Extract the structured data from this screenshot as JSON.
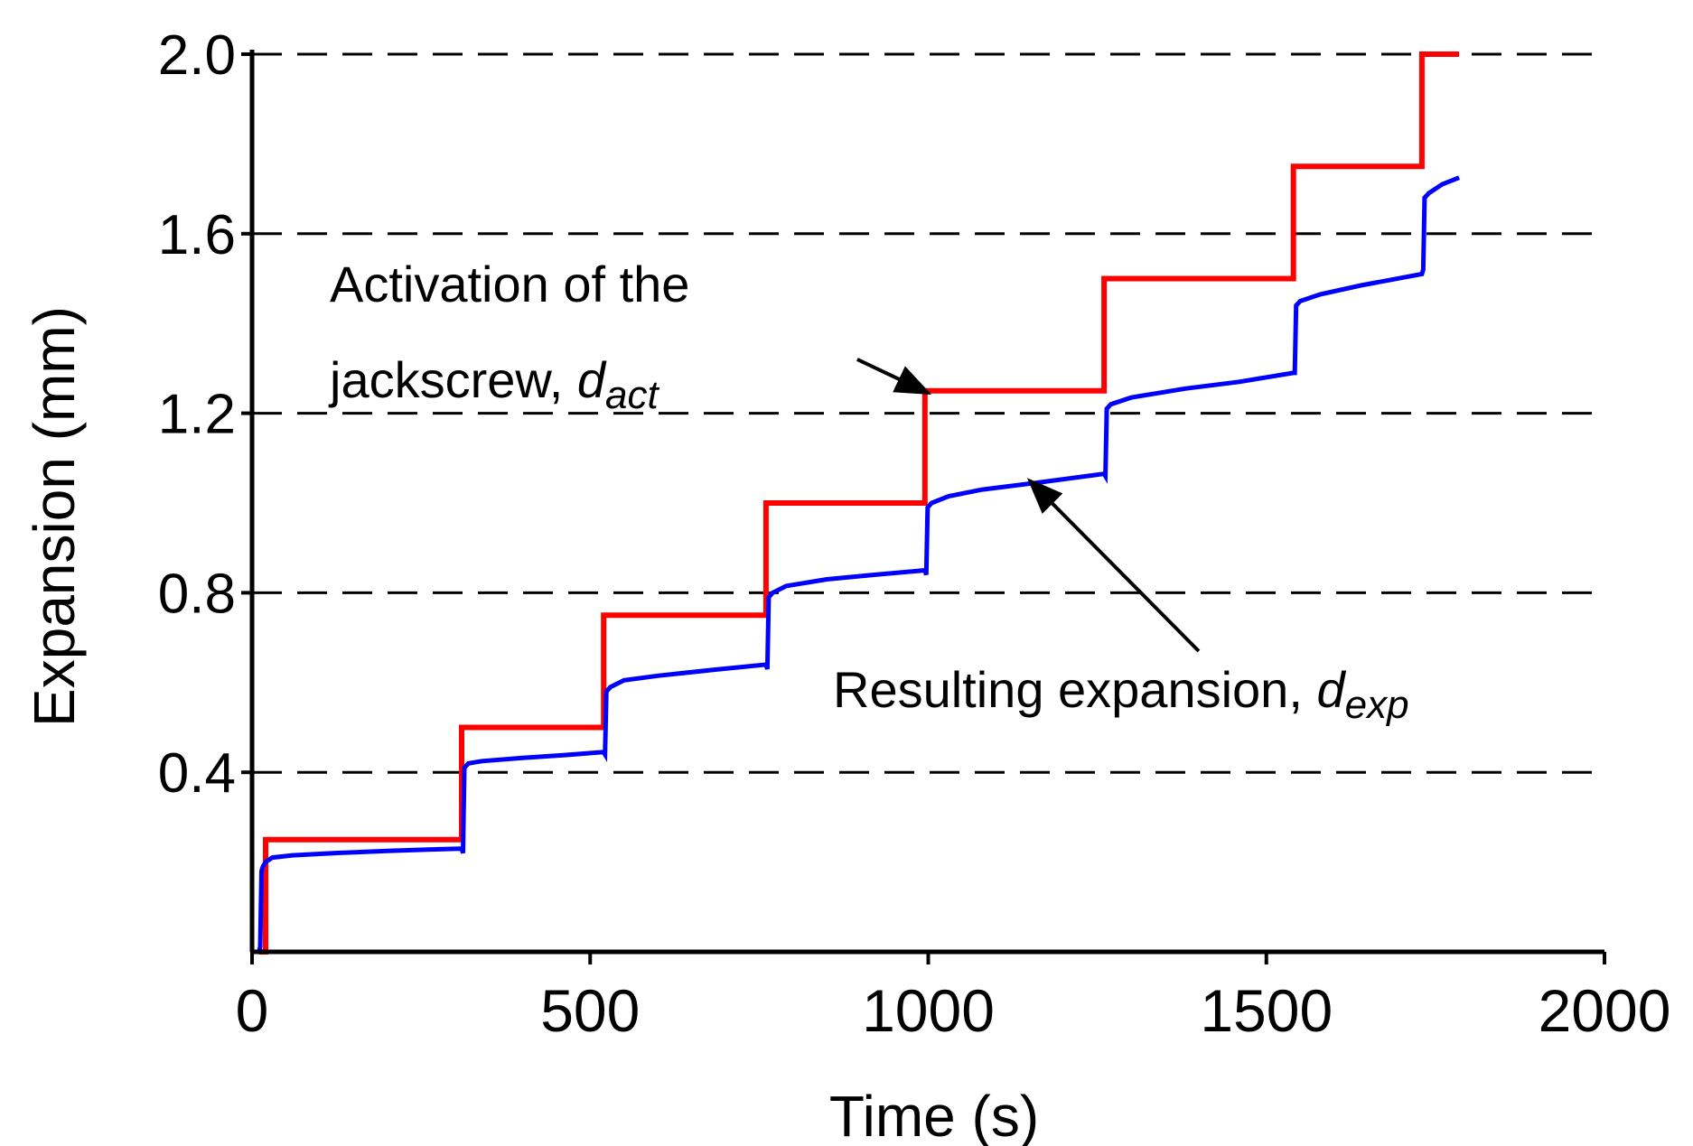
{
  "chart_data": {
    "type": "line",
    "title": "",
    "xlabel": "Time (s)",
    "ylabel": "Expansion (mm)",
    "xlim": [
      0,
      2000
    ],
    "ylim": [
      0,
      2.0
    ],
    "x_ticks": [
      0,
      500,
      1000,
      1500,
      2000
    ],
    "x_tick_labels": [
      "0",
      "500",
      "1000",
      "1500",
      "2000"
    ],
    "y_ticks": [
      0.4,
      0.8,
      1.2,
      1.6,
      2.0
    ],
    "y_tick_labels": [
      "0.4",
      "0.8",
      "1.2",
      "1.6",
      "2.0"
    ],
    "grid": "dashed horizontal lines at y ticks",
    "series": [
      {
        "key": "d_act",
        "color": "#ff0000",
        "points": [
          [
            10,
            0
          ],
          [
            20,
            0
          ],
          [
            20,
            0.25
          ],
          [
            310,
            0.25
          ],
          [
            310,
            0.5
          ],
          [
            520,
            0.5
          ],
          [
            520,
            0.75
          ],
          [
            760,
            0.75
          ],
          [
            760,
            1.0
          ],
          [
            995,
            1.0
          ],
          [
            995,
            1.25
          ],
          [
            1260,
            1.25
          ],
          [
            1260,
            1.5
          ],
          [
            1540,
            1.5
          ],
          [
            1540,
            1.75
          ],
          [
            1730,
            1.75
          ],
          [
            1730,
            2.0
          ],
          [
            1785,
            2.0
          ]
        ]
      },
      {
        "key": "d_exp",
        "color": "#0000ff",
        "points": [
          [
            0,
            0
          ],
          [
            10,
            0
          ],
          [
            12,
            0.01
          ],
          [
            14,
            0.18
          ],
          [
            16,
            0.19
          ],
          [
            20,
            0.2
          ],
          [
            30,
            0.21
          ],
          [
            60,
            0.215
          ],
          [
            120,
            0.22
          ],
          [
            200,
            0.225
          ],
          [
            260,
            0.228
          ],
          [
            310,
            0.23
          ],
          [
            312,
            0.22
          ],
          [
            314,
            0.41
          ],
          [
            320,
            0.42
          ],
          [
            340,
            0.425
          ],
          [
            400,
            0.432
          ],
          [
            460,
            0.438
          ],
          [
            520,
            0.445
          ],
          [
            522,
            0.44
          ],
          [
            524,
            0.58
          ],
          [
            530,
            0.59
          ],
          [
            550,
            0.605
          ],
          [
            600,
            0.615
          ],
          [
            680,
            0.628
          ],
          [
            760,
            0.64
          ],
          [
            762,
            0.63
          ],
          [
            764,
            0.79
          ],
          [
            770,
            0.8
          ],
          [
            790,
            0.815
          ],
          [
            850,
            0.83
          ],
          [
            920,
            0.84
          ],
          [
            995,
            0.85
          ],
          [
            997,
            0.84
          ],
          [
            999,
            0.99
          ],
          [
            1005,
            1.0
          ],
          [
            1030,
            1.015
          ],
          [
            1080,
            1.03
          ],
          [
            1160,
            1.045
          ],
          [
            1260,
            1.065
          ],
          [
            1262,
            1.06
          ],
          [
            1264,
            1.21
          ],
          [
            1270,
            1.22
          ],
          [
            1300,
            1.235
          ],
          [
            1380,
            1.255
          ],
          [
            1460,
            1.27
          ],
          [
            1540,
            1.29
          ],
          [
            1542,
            1.29
          ],
          [
            1544,
            1.44
          ],
          [
            1550,
            1.45
          ],
          [
            1580,
            1.465
          ],
          [
            1640,
            1.485
          ],
          [
            1730,
            1.51
          ],
          [
            1732,
            1.52
          ],
          [
            1734,
            1.68
          ],
          [
            1740,
            1.69
          ],
          [
            1760,
            1.71
          ],
          [
            1785,
            1.725
          ]
        ]
      }
    ],
    "annotations": [
      {
        "key": "act",
        "line1": "Activation of the",
        "line2_prefix": "jackscrew, ",
        "symbol": "d",
        "subscript": "act",
        "arrow_from": [
          895,
          1.32
        ],
        "arrow_to": [
          1000,
          1.245
        ]
      },
      {
        "key": "exp",
        "text_prefix": "Resulting expansion, ",
        "symbol": "d",
        "subscript": "exp",
        "arrow_from": [
          1400,
          0.67
        ],
        "arrow_to": [
          1150,
          1.05
        ]
      }
    ]
  }
}
